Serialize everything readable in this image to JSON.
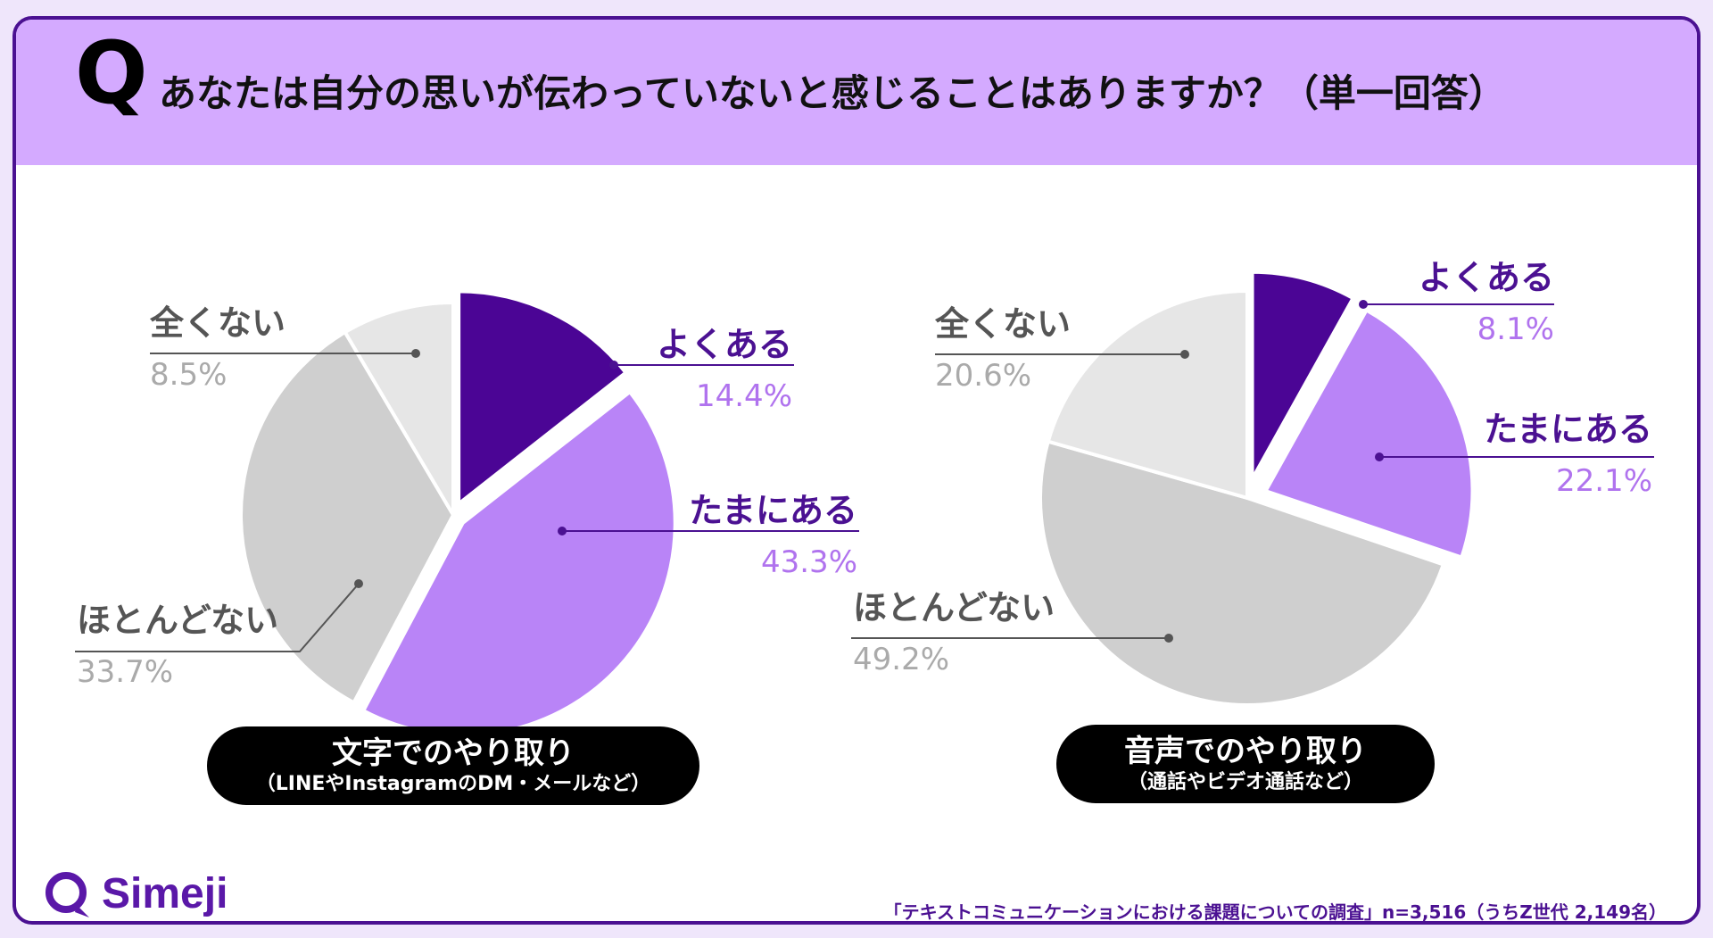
{
  "header": {
    "q_mark": "Q",
    "question": "あなたは自分の思いが伝わっていないと感じることはありますか？（単一回答）"
  },
  "colors": {
    "border": "#4b1192",
    "header_bg": "#d4aaff",
    "yoku_aru": "#4b0595",
    "tamani_aru": "#b984f7",
    "hotondo_nai": "#cfcfcf",
    "mattaku_nai": "#e6e6e6",
    "label_purple": "#4b1192",
    "label_light_purple": "#b073ee",
    "label_gray": "#555555",
    "value_gray": "#aaaaaa"
  },
  "chart_data": [
    {
      "type": "pie",
      "caption_title": "文字でのやり取り",
      "caption_sub": "（LINEやInstagramのDM・メールなど）",
      "slices": [
        {
          "label": "よくある",
          "value": 14.4,
          "value_text": "14.4%"
        },
        {
          "label": "たまにある",
          "value": 43.3,
          "value_text": "43.3%"
        },
        {
          "label": "ほとんどない",
          "value": 33.7,
          "value_text": "33.7%"
        },
        {
          "label": "全くない",
          "value": 8.5,
          "value_text": "8.5%"
        }
      ]
    },
    {
      "type": "pie",
      "caption_title": "音声でのやり取り",
      "caption_sub": "（通話やビデオ通話など）",
      "slices": [
        {
          "label": "よくある",
          "value": 8.1,
          "value_text": "8.1%"
        },
        {
          "label": "たまにある",
          "value": 22.1,
          "value_text": "22.1%"
        },
        {
          "label": "ほとんどない",
          "value": 49.2,
          "value_text": "49.2%"
        },
        {
          "label": "全くない",
          "value": 20.6,
          "value_text": "20.6%"
        }
      ]
    }
  ],
  "footer": {
    "logo_text": "Simeji",
    "source": "「テキストコミュニケーションにおける課題についての調査」n=3,516（うちZ世代 2,149名）"
  }
}
